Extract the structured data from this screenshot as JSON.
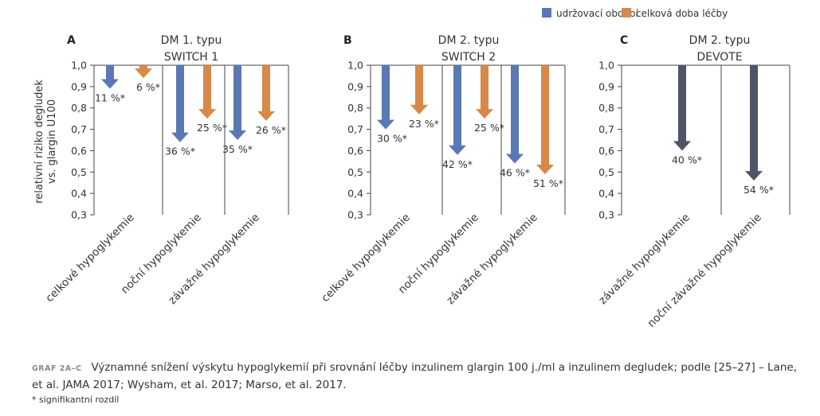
{
  "colors": {
    "blue": "#5a78b3",
    "orange": "#d88848",
    "dark": "#4f5566",
    "axis": "#444444"
  },
  "legend": [
    {
      "label": "udržovací období",
      "color": "#5a78b3"
    },
    {
      "label": "celková doba léčby",
      "color": "#d88848"
    }
  ],
  "y_axis_label": [
    "relativní riziko degludek",
    "vs. glargin U100"
  ],
  "chart_data": [
    {
      "type": "bar",
      "panel_letter": "A",
      "title": [
        "DM 1. typu",
        "SWITCH 1"
      ],
      "ylim": [
        0.3,
        1.0
      ],
      "yticks": [
        "1,0",
        "0,9",
        "0,8",
        "0,7",
        "0,6",
        "0,5",
        "0,4",
        "0,3"
      ],
      "categories": [
        "celkové hypoglykemie",
        "noční hypoglykemie",
        "závažné hypoglykemie"
      ],
      "series": [
        {
          "name": "udržovací období",
          "color": "#5a78b3",
          "values": [
            0.89,
            0.64,
            0.65
          ],
          "labels": [
            "11 %*",
            "36 %*",
            "35 %*"
          ]
        },
        {
          "name": "celková doba léčby",
          "color": "#d88848",
          "values": [
            0.94,
            0.75,
            0.74
          ],
          "labels": [
            "6 %*",
            "25 %*",
            "26 %*"
          ]
        }
      ]
    },
    {
      "type": "bar",
      "panel_letter": "B",
      "title": [
        "DM 2. typu",
        "SWITCH 2"
      ],
      "ylim": [
        0.3,
        1.0
      ],
      "yticks": [
        "1,0",
        "0,9",
        "0,8",
        "0,7",
        "0,6",
        "0,5",
        "0,4",
        "0,3"
      ],
      "categories": [
        "celkové hypoglykemie",
        "noční hypoglykemie",
        "závažné hypoglykemie"
      ],
      "series": [
        {
          "name": "udržovací období",
          "color": "#5a78b3",
          "values": [
            0.7,
            0.58,
            0.54
          ],
          "labels": [
            "30 %*",
            "42 %*",
            "46 %*"
          ]
        },
        {
          "name": "celková doba léčby",
          "color": "#d88848",
          "values": [
            0.77,
            0.75,
            0.49
          ],
          "labels": [
            "23 %*",
            "25 %*",
            "51 %*"
          ]
        }
      ]
    },
    {
      "type": "bar",
      "panel_letter": "C",
      "title": [
        "DM 2. typu",
        "DEVOTE"
      ],
      "ylim": [
        0.3,
        1.0
      ],
      "yticks": [
        "1,0",
        "0,9",
        "0,8",
        "0,7",
        "0,6",
        "0,5",
        "0,4",
        "0,3"
      ],
      "categories": [
        "závažné hypoglykemie",
        "noční závažné hypoglykemie"
      ],
      "series": [
        {
          "name": "",
          "color": "#4f5566",
          "values": [
            0.6,
            0.46
          ],
          "labels": [
            "40 %*",
            "54 %*"
          ]
        }
      ]
    }
  ],
  "caption": {
    "tag": "GRAF 2A–C",
    "text": "Významné snížení výskytu hypoglykemií při srovnání léčby inzulinem glargin 100 j./ml a inzulinem degludek; podle [25–27] – Lane, et al. JAMA 2017; Wysham, et al. 2017; Marso, et al. 2017.",
    "footnote": "* signifikantní rozdíl"
  }
}
